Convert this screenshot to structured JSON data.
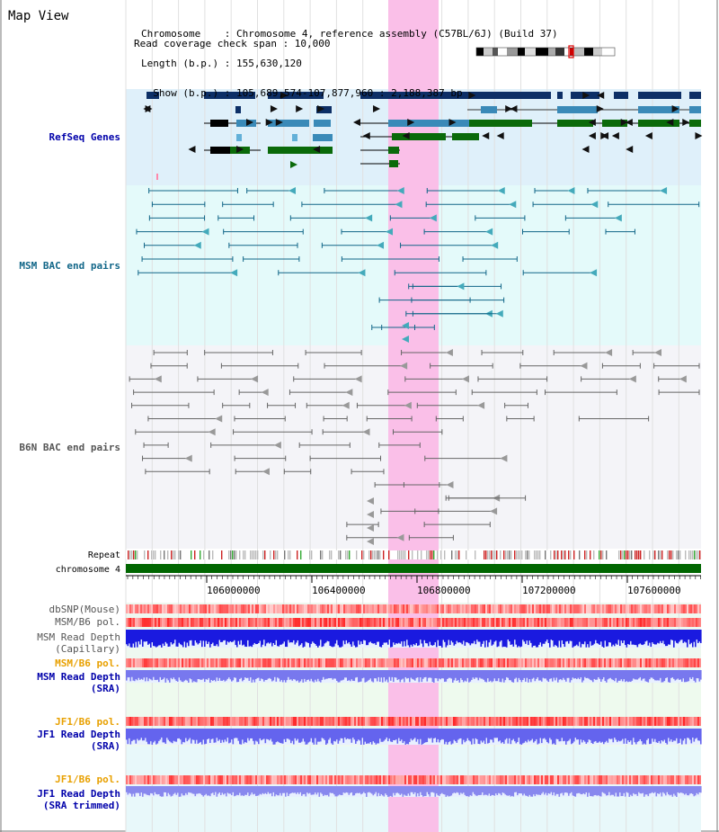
{
  "page_title": "Map View",
  "info": {
    "chromosome_key": "Chromosome",
    "chromosome_val": ": Chromosome 4, reference assembly (C57BL/6J) (Build 37)",
    "length_key": "Length (b.p.)",
    "length_val": ": 155,630,120",
    "show_key": "Show (b.p.)",
    "show_val": ": 105,689,574-107,877,960 : 2,188,387 bp",
    "coverage_line": "Read coverage check span : 10,000"
  },
  "track_labels": {
    "refseq": "RefSeq Genes",
    "msm_bac": "MSM BAC end pairs",
    "b6n_bac": "B6N BAC end pairs",
    "repeat": "Repeat",
    "chromosome": "chromosome 4",
    "dbsnp": "dbSNP(Mouse)",
    "msm_b6_pol_1": "MSM/B6 pol.",
    "msm_depth_cap_1": "MSM Read Depth",
    "msm_depth_cap_2": "(Capillary)",
    "msm_b6_pol_2": "MSM/B6 pol.",
    "msm_depth_sra_1": "MSM Read Depth",
    "msm_depth_sra_2": "(SRA)",
    "jf1_b6_pol_1": "JF1/B6 pol.",
    "jf1_depth_sra_1": "JF1 Read Depth",
    "jf1_depth_sra_2": "(SRA)",
    "jf1_b6_pol_2": "JF1/B6 pol.",
    "jf1_depth_trim_1": "JF1 Read Depth",
    "jf1_depth_trim_2": "(SRA trimmed)"
  },
  "ruler": {
    "ticks": [
      "106000000",
      "106400000",
      "106800000",
      "107200000",
      "107600000"
    ]
  },
  "colors": {
    "label_blue": "#0000aa",
    "label_teal": "#116688",
    "label_gray": "#555555",
    "label_orange": "#e8a000",
    "refseq_bg": "#dff0fa",
    "msm_bg": "#e4fafa",
    "b6n_bg": "#f4f4f8",
    "highlight": "#f9d5f0",
    "chromosome_bar": "#006600"
  }
}
